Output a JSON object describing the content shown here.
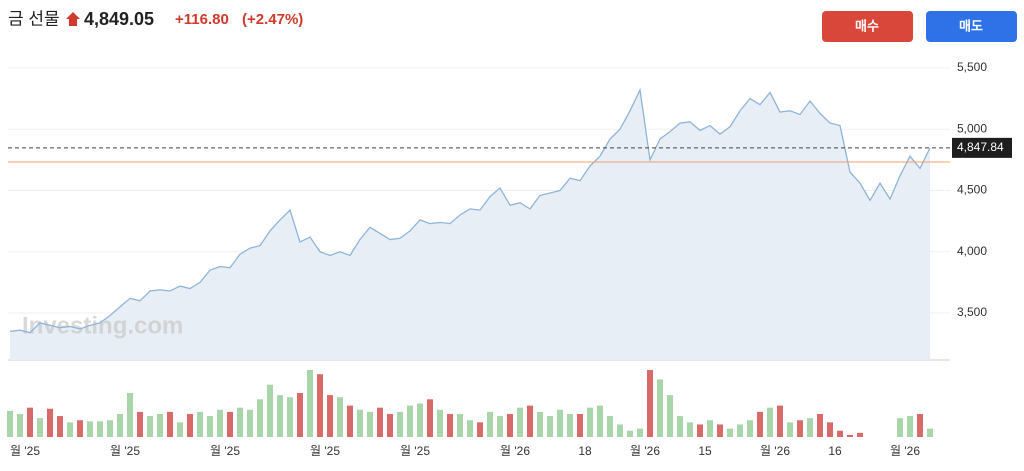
{
  "header": {
    "name": "금 선물",
    "price": "4,849.05",
    "change": "+116.80",
    "change_pct": "(+2.47%)"
  },
  "buttons": {
    "buy": "매수",
    "sell": "매도"
  },
  "chart_data": {
    "type": "area",
    "color": "#8fb4dc",
    "fill": "#e8eef6",
    "categories": [
      null,
      null,
      "월 '25",
      null,
      null,
      null,
      null,
      null,
      null,
      null,
      null,
      null,
      "월 '25",
      null,
      null,
      null,
      null,
      null,
      null,
      null,
      null,
      null,
      "월 '25",
      null,
      null,
      null,
      null,
      null,
      null,
      null,
      null,
      null,
      "월 '25",
      null,
      null,
      null,
      null,
      null,
      null,
      null,
      null,
      "월 '25",
      null,
      null,
      null,
      null,
      null,
      null,
      null,
      null,
      null,
      "월 '26",
      null,
      null,
      null,
      null,
      null,
      null,
      "18",
      null,
      null,
      null,
      null,
      null,
      "월 '26",
      null,
      null,
      null,
      null,
      null,
      "15",
      null,
      null,
      null,
      null,
      null,
      null,
      "월 '26",
      null,
      null,
      null,
      null,
      null,
      "16",
      null,
      null,
      null,
      null,
      null,
      null,
      "월 '26",
      null,
      null
    ],
    "values": [
      3350,
      3360,
      3340,
      3420,
      3400,
      3380,
      3390,
      3370,
      3400,
      3420,
      3480,
      3550,
      3620,
      3600,
      3680,
      3690,
      3680,
      3720,
      3700,
      3750,
      3850,
      3880,
      3870,
      3980,
      4030,
      4050,
      4170,
      4260,
      4340,
      4080,
      4120,
      4000,
      3970,
      4000,
      3970,
      4100,
      4200,
      4150,
      4100,
      4110,
      4170,
      4260,
      4230,
      4240,
      4230,
      4300,
      4350,
      4340,
      4450,
      4520,
      4380,
      4400,
      4350,
      4460,
      4480,
      4500,
      4600,
      4580,
      4700,
      4780,
      4920,
      5000,
      5150,
      5320,
      4750,
      4920,
      4980,
      5050,
      5060,
      4990,
      5030,
      4960,
      5020,
      5150,
      5250,
      5200,
      5300,
      5140,
      5150,
      5120,
      5230,
      5130,
      5050,
      5030,
      4650,
      4560,
      4420,
      4560,
      4430,
      4620,
      4780,
      4680,
      4847.84
    ],
    "last_value_label": "4,847.84",
    "reference_line": {
      "value": 4732.25,
      "color": "#f0a070"
    },
    "ylim": [
      3117,
      5581
    ],
    "yticks": [
      {
        "value": 3500,
        "label": "3,500"
      },
      {
        "value": 4000,
        "label": "4,000"
      },
      {
        "value": 4500,
        "label": "4,500"
      },
      {
        "value": 5000,
        "label": "5,000"
      },
      {
        "value": 5500,
        "label": "5,500"
      }
    ],
    "grid": true,
    "watermark": "Investing.com",
    "volume": {
      "up_color": "#a8d5a9",
      "down_color": "#d86a6a",
      "values": [
        25,
        22,
        28,
        18,
        27,
        20,
        14,
        16,
        15,
        15,
        16,
        22,
        42,
        24,
        20,
        22,
        24,
        14,
        22,
        24,
        20,
        26,
        24,
        28,
        26,
        36,
        50,
        40,
        38,
        42,
        64,
        60,
        40,
        38,
        30,
        26,
        24,
        28,
        22,
        24,
        30,
        32,
        36,
        26,
        22,
        22,
        16,
        14,
        24,
        20,
        22,
        28,
        30,
        24,
        20,
        26,
        22,
        22,
        28,
        30,
        20,
        12,
        6,
        8,
        64,
        55,
        40,
        20,
        14,
        12,
        16,
        12,
        8,
        12,
        16,
        24,
        28,
        30,
        14,
        16,
        18,
        22,
        14,
        6,
        2,
        4,
        0,
        0,
        0,
        18,
        20,
        22,
        8
      ]
    }
  }
}
